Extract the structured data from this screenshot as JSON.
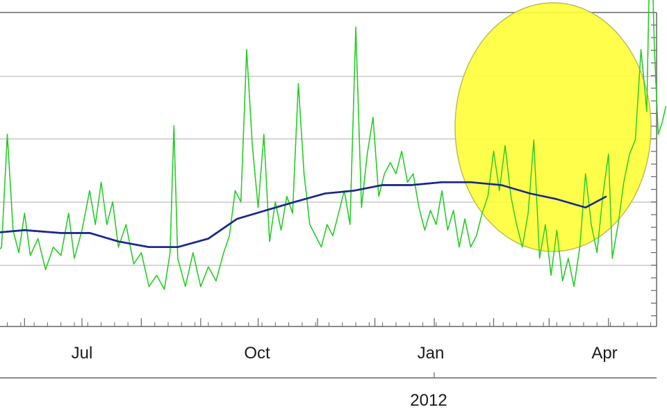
{
  "chart_data": {
    "type": "line",
    "title": "",
    "xlabel": "",
    "ylabel": "",
    "x_tick_labels": [
      "Jul",
      "Oct",
      "Jan",
      "Apr"
    ],
    "year_label": "2012",
    "grid": true,
    "legend": "none",
    "annotation": {
      "shape": "ellipse",
      "color": "#ffff3c",
      "covers": "Feb–Mar 2012 spike"
    },
    "series": [
      {
        "color": "#22cc22",
        "points": [
          [
            "2011-05-15",
            0.18
          ],
          [
            "2011-05-20",
            0.22
          ],
          [
            "2011-05-23",
            0.62
          ],
          [
            "2011-05-26",
            0.28
          ],
          [
            "2011-05-29",
            0.2
          ],
          [
            "2011-06-01",
            0.34
          ],
          [
            "2011-06-04",
            0.19
          ],
          [
            "2011-06-08",
            0.25
          ],
          [
            "2011-06-12",
            0.14
          ],
          [
            "2011-06-16",
            0.22
          ],
          [
            "2011-06-20",
            0.19
          ],
          [
            "2011-06-24",
            0.34
          ],
          [
            "2011-06-27",
            0.18
          ],
          [
            "2011-07-01",
            0.28
          ],
          [
            "2011-07-05",
            0.42
          ],
          [
            "2011-07-08",
            0.3
          ],
          [
            "2011-07-11",
            0.45
          ],
          [
            "2011-07-14",
            0.3
          ],
          [
            "2011-07-17",
            0.38
          ],
          [
            "2011-07-20",
            0.22
          ],
          [
            "2011-07-24",
            0.3
          ],
          [
            "2011-07-28",
            0.16
          ],
          [
            "2011-08-01",
            0.2
          ],
          [
            "2011-08-05",
            0.08
          ],
          [
            "2011-08-09",
            0.12
          ],
          [
            "2011-08-13",
            0.07
          ],
          [
            "2011-08-16",
            0.2
          ],
          [
            "2011-08-18",
            0.65
          ],
          [
            "2011-08-20",
            0.18
          ],
          [
            "2011-08-24",
            0.08
          ],
          [
            "2011-08-28",
            0.2
          ],
          [
            "2011-09-01",
            0.08
          ],
          [
            "2011-09-05",
            0.15
          ],
          [
            "2011-09-09",
            0.1
          ],
          [
            "2011-09-13",
            0.2
          ],
          [
            "2011-09-16",
            0.26
          ],
          [
            "2011-09-19",
            0.42
          ],
          [
            "2011-09-22",
            0.38
          ],
          [
            "2011-09-25",
            0.92
          ],
          [
            "2011-09-28",
            0.58
          ],
          [
            "2011-10-01",
            0.36
          ],
          [
            "2011-10-04",
            0.62
          ],
          [
            "2011-10-07",
            0.24
          ],
          [
            "2011-10-10",
            0.38
          ],
          [
            "2011-10-13",
            0.28
          ],
          [
            "2011-10-16",
            0.4
          ],
          [
            "2011-10-19",
            0.34
          ],
          [
            "2011-10-22",
            0.8
          ],
          [
            "2011-10-25",
            0.48
          ],
          [
            "2011-10-28",
            0.3
          ],
          [
            "2011-10-31",
            0.26
          ],
          [
            "2011-11-03",
            0.22
          ],
          [
            "2011-11-06",
            0.3
          ],
          [
            "2011-11-09",
            0.26
          ],
          [
            "2011-11-12",
            0.34
          ],
          [
            "2011-11-15",
            0.42
          ],
          [
            "2011-11-18",
            0.3
          ],
          [
            "2011-11-21",
            1.0
          ],
          [
            "2011-11-24",
            0.36
          ],
          [
            "2011-11-27",
            0.55
          ],
          [
            "2011-11-30",
            0.68
          ],
          [
            "2011-12-03",
            0.4
          ],
          [
            "2011-12-06",
            0.48
          ],
          [
            "2011-12-09",
            0.52
          ],
          [
            "2011-12-12",
            0.48
          ],
          [
            "2011-12-15",
            0.56
          ],
          [
            "2011-12-18",
            0.45
          ],
          [
            "2011-12-21",
            0.48
          ],
          [
            "2011-12-24",
            0.36
          ],
          [
            "2011-12-27",
            0.28
          ],
          [
            "2011-12-30",
            0.35
          ],
          [
            "2012-01-02",
            0.3
          ],
          [
            "2012-01-05",
            0.42
          ],
          [
            "2012-01-08",
            0.28
          ],
          [
            "2012-01-11",
            0.35
          ],
          [
            "2012-01-14",
            0.22
          ],
          [
            "2012-01-17",
            0.32
          ],
          [
            "2012-01-20",
            0.22
          ],
          [
            "2012-01-23",
            0.26
          ],
          [
            "2012-01-26",
            0.34
          ],
          [
            "2012-01-29",
            0.4
          ],
          [
            "2012-02-01",
            0.56
          ],
          [
            "2012-02-04",
            0.42
          ],
          [
            "2012-02-07",
            0.58
          ],
          [
            "2012-02-10",
            0.4
          ],
          [
            "2012-02-13",
            0.3
          ],
          [
            "2012-02-16",
            0.22
          ],
          [
            "2012-02-19",
            0.34
          ],
          [
            "2012-02-22",
            0.6
          ],
          [
            "2012-02-25",
            0.18
          ],
          [
            "2012-02-28",
            0.3
          ],
          [
            "2012-03-02",
            0.12
          ],
          [
            "2012-03-05",
            0.28
          ],
          [
            "2012-03-08",
            0.1
          ],
          [
            "2012-03-11",
            0.18
          ],
          [
            "2012-03-14",
            0.08
          ],
          [
            "2012-03-17",
            0.22
          ],
          [
            "2012-03-20",
            0.48
          ],
          [
            "2012-03-23",
            0.3
          ],
          [
            "2012-03-26",
            0.2
          ],
          [
            "2012-03-29",
            0.4
          ],
          [
            "2012-04-01",
            0.55
          ],
          [
            "2012-04-03",
            0.18
          ],
          [
            "2012-04-06",
            0.3
          ],
          [
            "2012-04-09",
            0.45
          ],
          [
            "2012-04-12",
            0.55
          ],
          [
            "2012-04-15",
            0.6
          ],
          [
            "2012-04-18",
            0.92
          ],
          [
            "2012-04-21",
            0.7
          ],
          [
            "2012-04-23",
            1.42
          ],
          [
            "2012-04-25",
            0.92
          ],
          [
            "2012-04-27",
            0.62
          ],
          [
            "2012-04-29",
            0.66
          ],
          [
            "2012-05-01",
            0.72
          ]
        ]
      },
      {
        "color": "#1a2a8c",
        "points": [
          [
            "2011-05-15",
            0.27
          ],
          [
            "2011-06-01",
            0.28
          ],
          [
            "2011-06-20",
            0.27
          ],
          [
            "2011-07-05",
            0.27
          ],
          [
            "2011-07-20",
            0.24
          ],
          [
            "2011-08-05",
            0.22
          ],
          [
            "2011-08-20",
            0.22
          ],
          [
            "2011-09-05",
            0.25
          ],
          [
            "2011-09-20",
            0.32
          ],
          [
            "2011-10-05",
            0.35
          ],
          [
            "2011-10-20",
            0.38
          ],
          [
            "2011-11-05",
            0.41
          ],
          [
            "2011-11-20",
            0.42
          ],
          [
            "2011-12-05",
            0.44
          ],
          [
            "2011-12-20",
            0.44
          ],
          [
            "2012-01-05",
            0.45
          ],
          [
            "2012-01-20",
            0.45
          ],
          [
            "2012-02-05",
            0.44
          ],
          [
            "2012-02-20",
            0.41
          ],
          [
            "2012-03-05",
            0.39
          ],
          [
            "2012-03-20",
            0.36
          ],
          [
            "2012-03-31",
            0.4
          ]
        ]
      }
    ]
  },
  "colors": {
    "grid": "#c8c8c8",
    "axis": "#666666",
    "background": "#ffffff"
  }
}
